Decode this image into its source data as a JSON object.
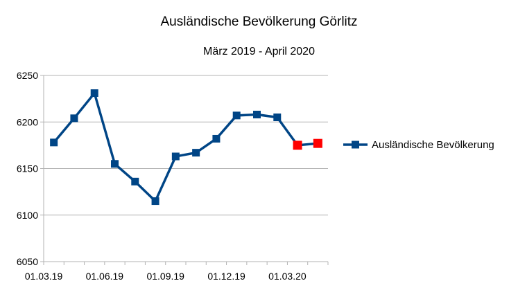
{
  "chart_data": {
    "type": "line",
    "title": "Ausländische Bevölkerung Görlitz",
    "subtitle": "März 2019 - April 2020",
    "xlabel": "",
    "ylabel": "",
    "ylim": [
      6050,
      6250
    ],
    "yticks": [
      "6250",
      "6200",
      "6150",
      "6100",
      "6050"
    ],
    "xticks": [
      "01.03.19",
      "01.06.19",
      "01.09.19",
      "01.12.19",
      "01.03.20"
    ],
    "x": [
      "01.03.19",
      "01.04.19",
      "01.05.19",
      "01.06.19",
      "01.07.19",
      "01.08.19",
      "01.09.19",
      "01.10.19",
      "01.11.19",
      "01.12.19",
      "01.01.20",
      "01.02.20",
      "01.03.20",
      "01.04.20"
    ],
    "series": [
      {
        "name": "Ausländische Bevölkerung",
        "values": [
          6178,
          6204,
          6231,
          6155,
          6136,
          6115,
          6163,
          6167,
          6182,
          6207,
          6208,
          6205,
          6175,
          6177
        ],
        "color": "#004586",
        "highlight_indices": [
          12,
          13
        ],
        "highlight_color": "#ff0000"
      }
    ],
    "grid": "horizontal",
    "legend": "right"
  }
}
